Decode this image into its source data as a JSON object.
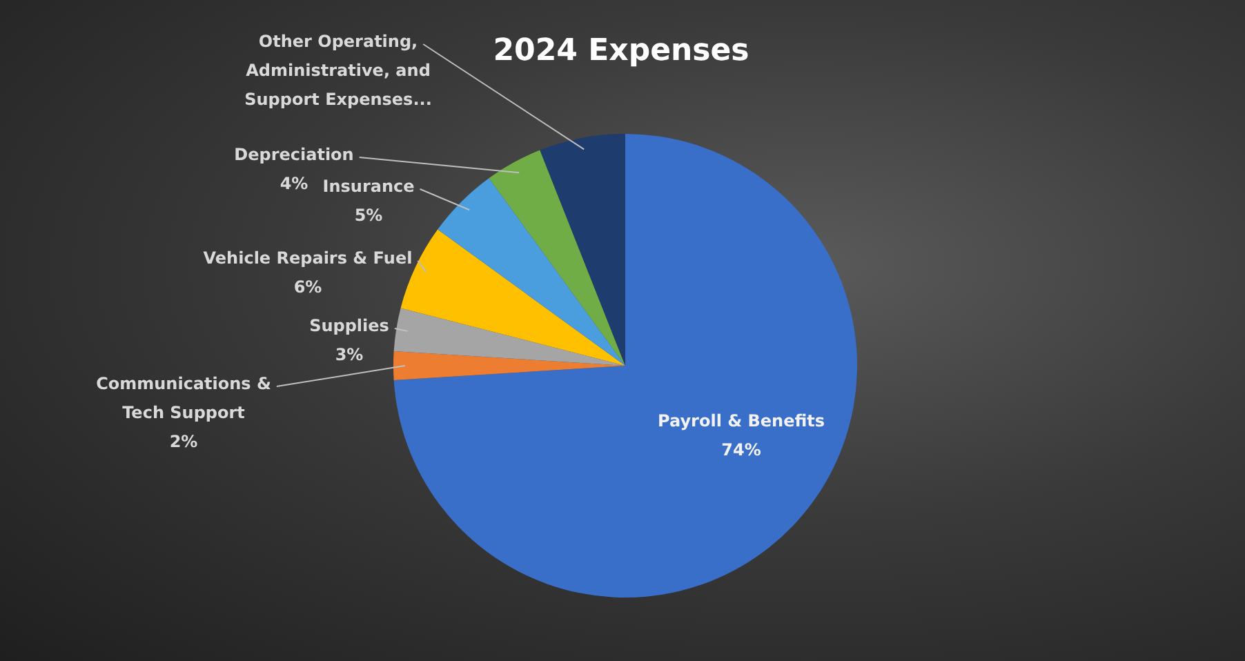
{
  "chart_data": {
    "type": "pie",
    "title": "2024 Expenses",
    "categories": [
      "Payroll & Benefits",
      "Communications & Tech Support",
      "Supplies",
      "Vehicle Repairs & Fuel",
      "Insurance",
      "Depreciation",
      "Other Operating, Administrative, and Support Expenses..."
    ],
    "values": [
      74,
      2,
      3,
      6,
      5,
      4,
      6
    ],
    "value_labels": [
      "74%",
      "2%",
      "3%",
      "6%",
      "5%",
      "4%",
      null
    ],
    "colors": [
      "#3a6fc9",
      "#ed7d31",
      "#a5a5a5",
      "#ffc000",
      "#4a9ede",
      "#70ad47",
      "#1f3c6e"
    ],
    "legend": false
  }
}
